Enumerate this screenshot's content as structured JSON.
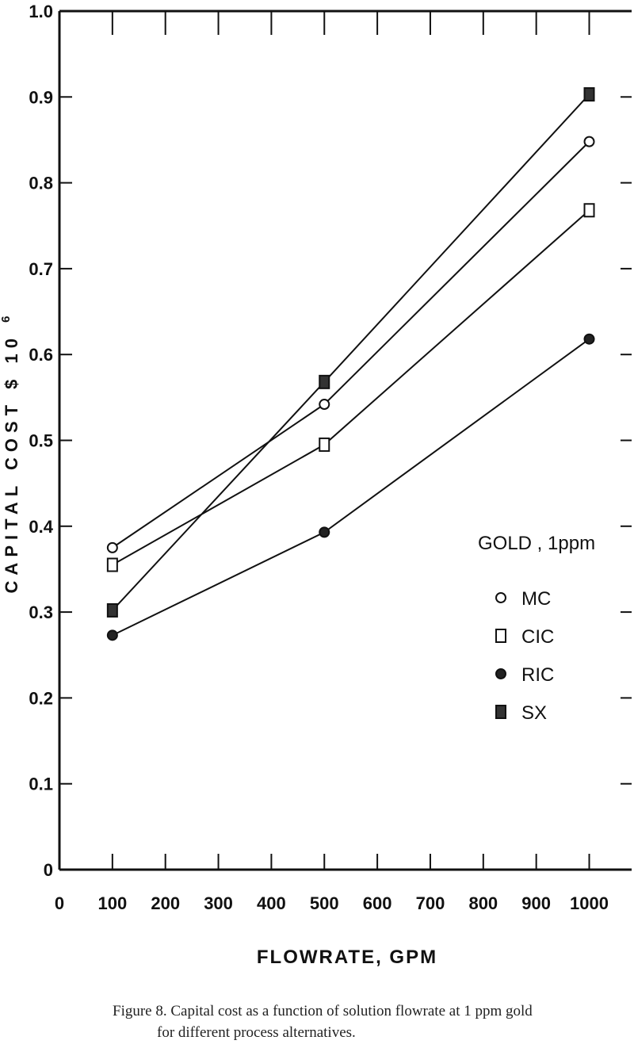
{
  "chart_data": {
    "type": "line",
    "xlabel": "FLOWRATE, GPM",
    "ylabel": "CAPITAL COST $ 10",
    "ylabel_sup": "6",
    "xlim": [
      0,
      1080
    ],
    "ylim": [
      0,
      1.0
    ],
    "xticks": [
      0,
      100,
      200,
      300,
      400,
      500,
      600,
      700,
      800,
      900,
      1000
    ],
    "xtick_labels": [
      "0",
      "100",
      "200",
      "300",
      "400",
      "500",
      "600",
      "700",
      "800",
      "900",
      "1000"
    ],
    "yticks": [
      0,
      0.1,
      0.2,
      0.3,
      0.4,
      0.5,
      0.6,
      0.7,
      0.8,
      0.9,
      1.0
    ],
    "ytick_labels": [
      "0",
      "0.1",
      "0.2",
      "0.3",
      "0.4",
      "0.5",
      "0.6",
      "0.7",
      "0.8",
      "0.9",
      "1.0"
    ],
    "grid": false,
    "legend_title": "GOLD , 1ppm",
    "legend_position": "right",
    "series": [
      {
        "name": "MC",
        "marker": "circle-open",
        "x": [
          100,
          500,
          1000
        ],
        "y": [
          0.375,
          0.542,
          0.848
        ]
      },
      {
        "name": "CIC",
        "marker": "square-open",
        "x": [
          100,
          500,
          1000
        ],
        "y": [
          0.355,
          0.495,
          0.768
        ]
      },
      {
        "name": "RIC",
        "marker": "circle-filled",
        "x": [
          100,
          500,
          1000
        ],
        "y": [
          0.273,
          0.393,
          0.618
        ]
      },
      {
        "name": "SX",
        "marker": "square-filled",
        "x": [
          100,
          500,
          1000
        ],
        "y": [
          0.302,
          0.568,
          0.903
        ]
      }
    ]
  },
  "caption": {
    "line1": "Figure 8.  Capital cost as a function of solution flowrate at 1 ppm gold",
    "line2": "for different process alternatives."
  }
}
